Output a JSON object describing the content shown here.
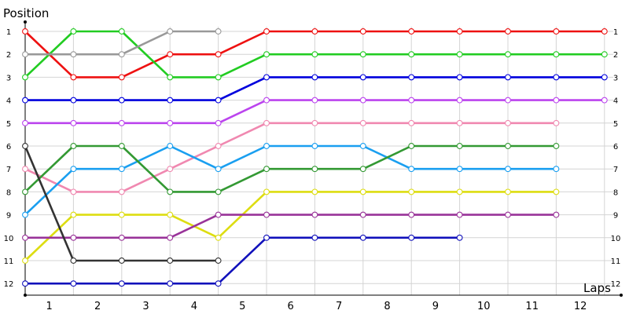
{
  "chart_data": {
    "type": "line",
    "ylabel": "Position",
    "xlabel": "Laps",
    "x_categories": [
      "1",
      "2",
      "3",
      "4",
      "5",
      "6",
      "7",
      "8",
      "9",
      "10",
      "11",
      "12"
    ],
    "y_ticks": [
      1,
      2,
      3,
      4,
      5,
      6,
      7,
      8,
      9,
      10,
      11,
      12
    ],
    "y_inverted": true,
    "grid": true,
    "x_points": [
      0,
      1,
      2,
      3,
      4,
      5,
      6,
      7,
      8,
      9,
      10,
      11,
      12
    ],
    "series": [
      {
        "color": "#ee1111",
        "values": [
          1,
          3,
          3,
          2,
          2,
          1,
          1,
          1,
          1,
          1,
          1,
          1,
          1
        ]
      },
      {
        "color": "#22cc22",
        "values": [
          3,
          1,
          1,
          3,
          3,
          2,
          2,
          2,
          2,
          2,
          2,
          2,
          2
        ]
      },
      {
        "color": "#0000dd",
        "values": [
          4,
          4,
          4,
          4,
          4,
          3,
          3,
          3,
          3,
          3,
          3,
          3,
          3
        ]
      },
      {
        "color": "#bb44ee",
        "values": [
          5,
          5,
          5,
          5,
          5,
          4,
          4,
          4,
          4,
          4,
          4,
          4,
          4
        ]
      },
      {
        "color": "#f088b0",
        "values": [
          7,
          8,
          8,
          7,
          6,
          5,
          5,
          5,
          5,
          5,
          5,
          5,
          null
        ]
      },
      {
        "color": "#1a9ff0",
        "values": [
          9,
          7,
          7,
          6,
          7,
          6,
          6,
          6,
          7,
          7,
          7,
          7,
          null
        ]
      },
      {
        "color": "#339933",
        "values": [
          8,
          6,
          6,
          8,
          8,
          7,
          7,
          7,
          6,
          6,
          6,
          6,
          null
        ]
      },
      {
        "color": "#dddd11",
        "values": [
          11,
          9,
          9,
          9,
          10,
          8,
          8,
          8,
          8,
          8,
          8,
          8,
          null
        ]
      },
      {
        "color": "#993399",
        "values": [
          10,
          10,
          10,
          10,
          9,
          9,
          9,
          9,
          9,
          9,
          9,
          9,
          null
        ]
      },
      {
        "color": "#1111bb",
        "values": [
          12,
          12,
          12,
          12,
          12,
          10,
          10,
          10,
          10,
          10,
          null,
          null,
          null
        ]
      },
      {
        "color": "#333333",
        "values": [
          6,
          11,
          11,
          11,
          11,
          null,
          null,
          null,
          null,
          null,
          null,
          null,
          null
        ]
      },
      {
        "color": "#999999",
        "values": [
          2,
          2,
          2,
          1,
          1,
          null,
          null,
          null,
          null,
          null,
          null,
          null,
          null
        ]
      }
    ]
  }
}
